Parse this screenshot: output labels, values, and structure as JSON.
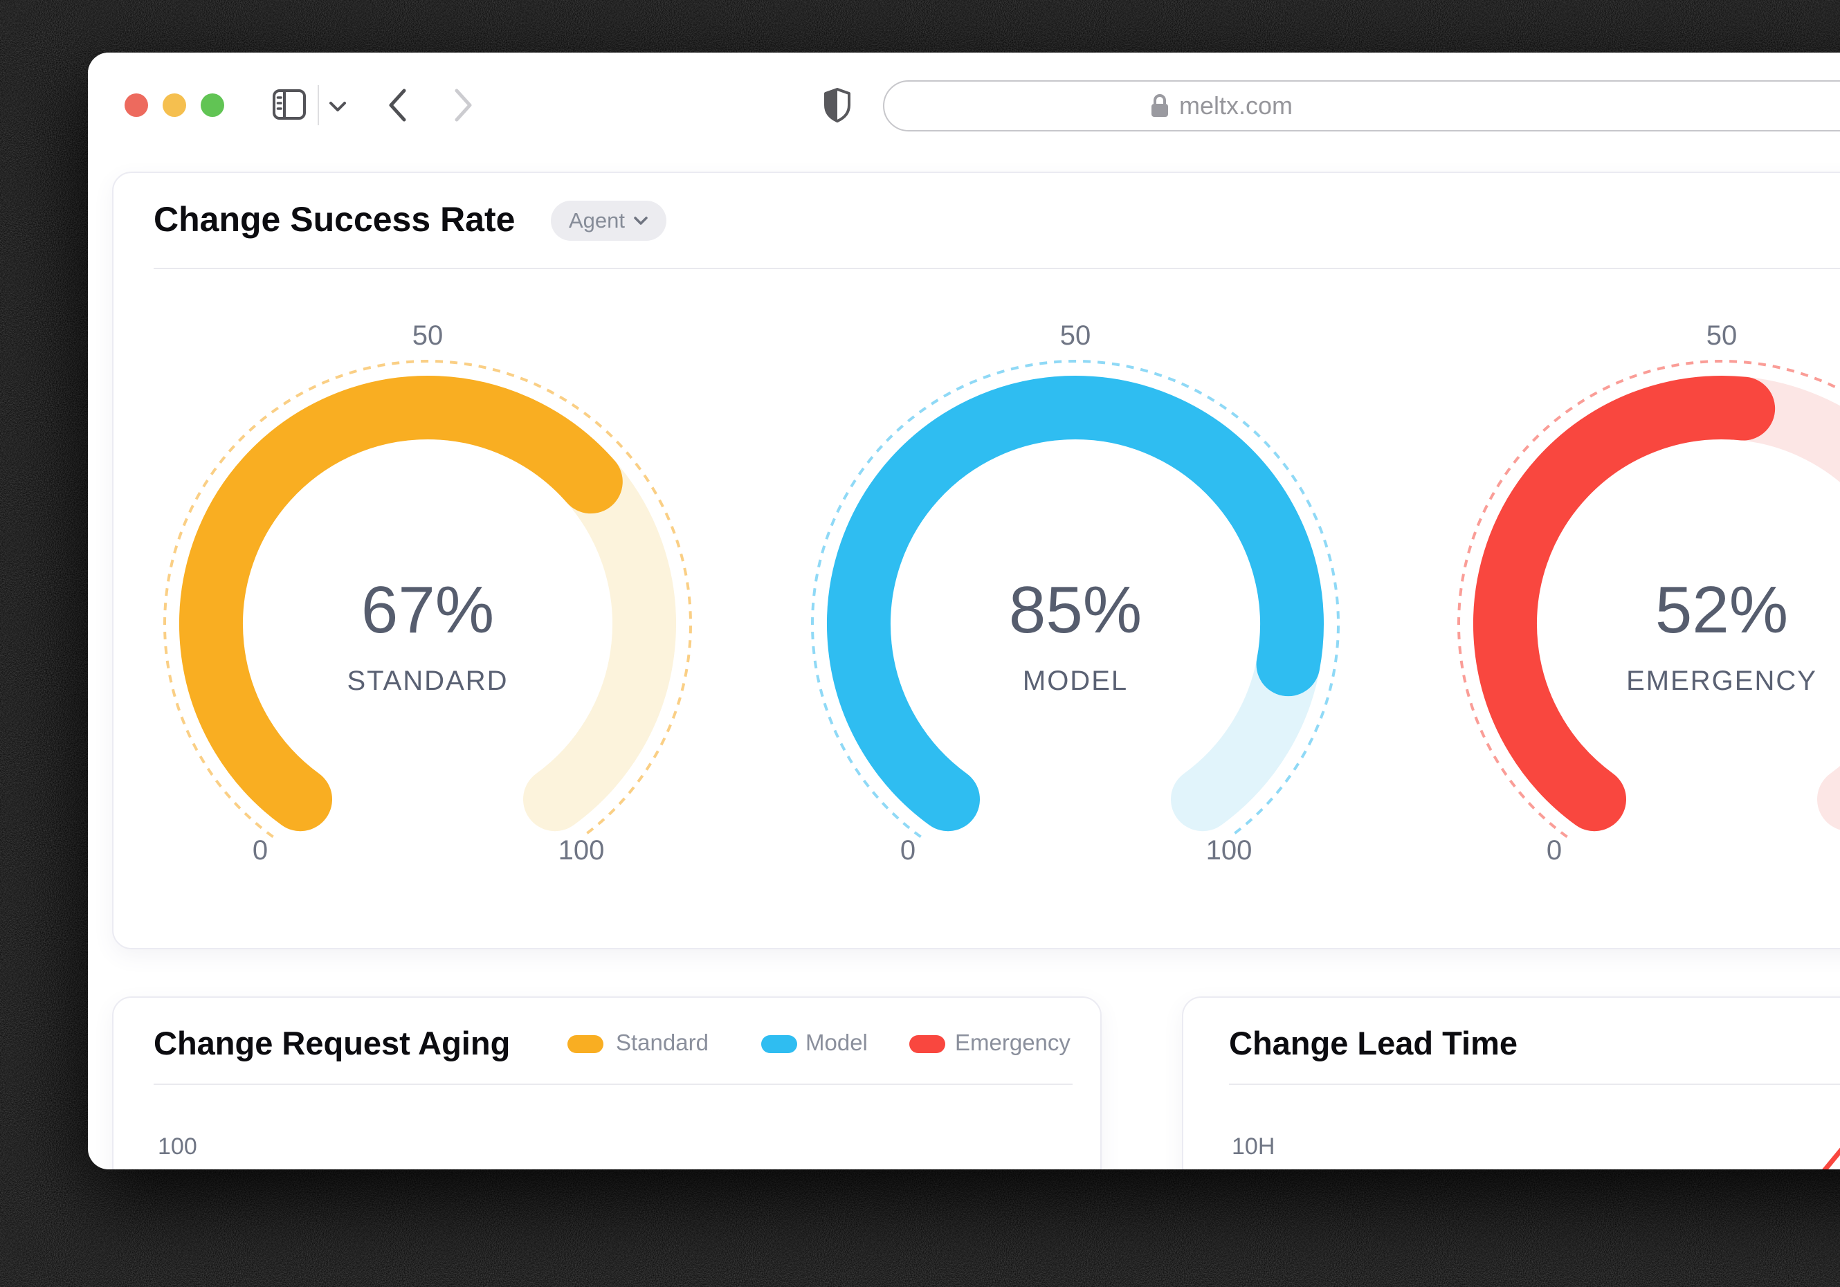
{
  "window": {
    "url": "meltx.com",
    "traffic_light_colors": [
      "#ED6A5E",
      "#F5BF4F",
      "#61C454"
    ]
  },
  "success_card": {
    "title": "Change Success Rate",
    "filter_label": "Agent"
  },
  "aging_card": {
    "title": "Change Request Aging"
  },
  "lead_card": {
    "title": "Change Lead Time"
  },
  "chart_data": [
    {
      "type": "gauge",
      "card_title": "Change Success Rate",
      "axis_min": 0,
      "axis_max": 100,
      "sweep_degrees": 288,
      "ticks": [
        "0",
        "50",
        "100"
      ],
      "items": [
        {
          "value": 67,
          "display": "67%",
          "label": "STANDARD",
          "color": "#F9AE22",
          "track_color": "#FCF3DC",
          "dotted_color": "#FACF85"
        },
        {
          "value": 85,
          "display": "85%",
          "label": "MODEL",
          "color": "#2FBDF1",
          "track_color": "#E1F4FB",
          "dotted_color": "#8FD9F6"
        },
        {
          "value": 52,
          "display": "52%",
          "label": "EMERGENCY",
          "color": "#F9473F",
          "track_color": "#FCE6E5",
          "dotted_color": "#FA9D97"
        }
      ]
    },
    {
      "type": "line",
      "card_title": "Change Request Aging",
      "y_tick_visible": "100",
      "legend": [
        {
          "label": "Standard",
          "color": "#F9AE22"
        },
        {
          "label": "Model",
          "color": "#2FBDF1"
        },
        {
          "label": "Emergency",
          "color": "#F9473F"
        }
      ]
    },
    {
      "type": "line",
      "card_title": "Change Lead Time",
      "y_tick_visible": "10H",
      "partial_series": {
        "name": "Emergency",
        "color": "#F9473F",
        "visible_segment": [
          [
            893,
            290
          ],
          [
            1010,
            148
          ]
        ]
      }
    }
  ]
}
